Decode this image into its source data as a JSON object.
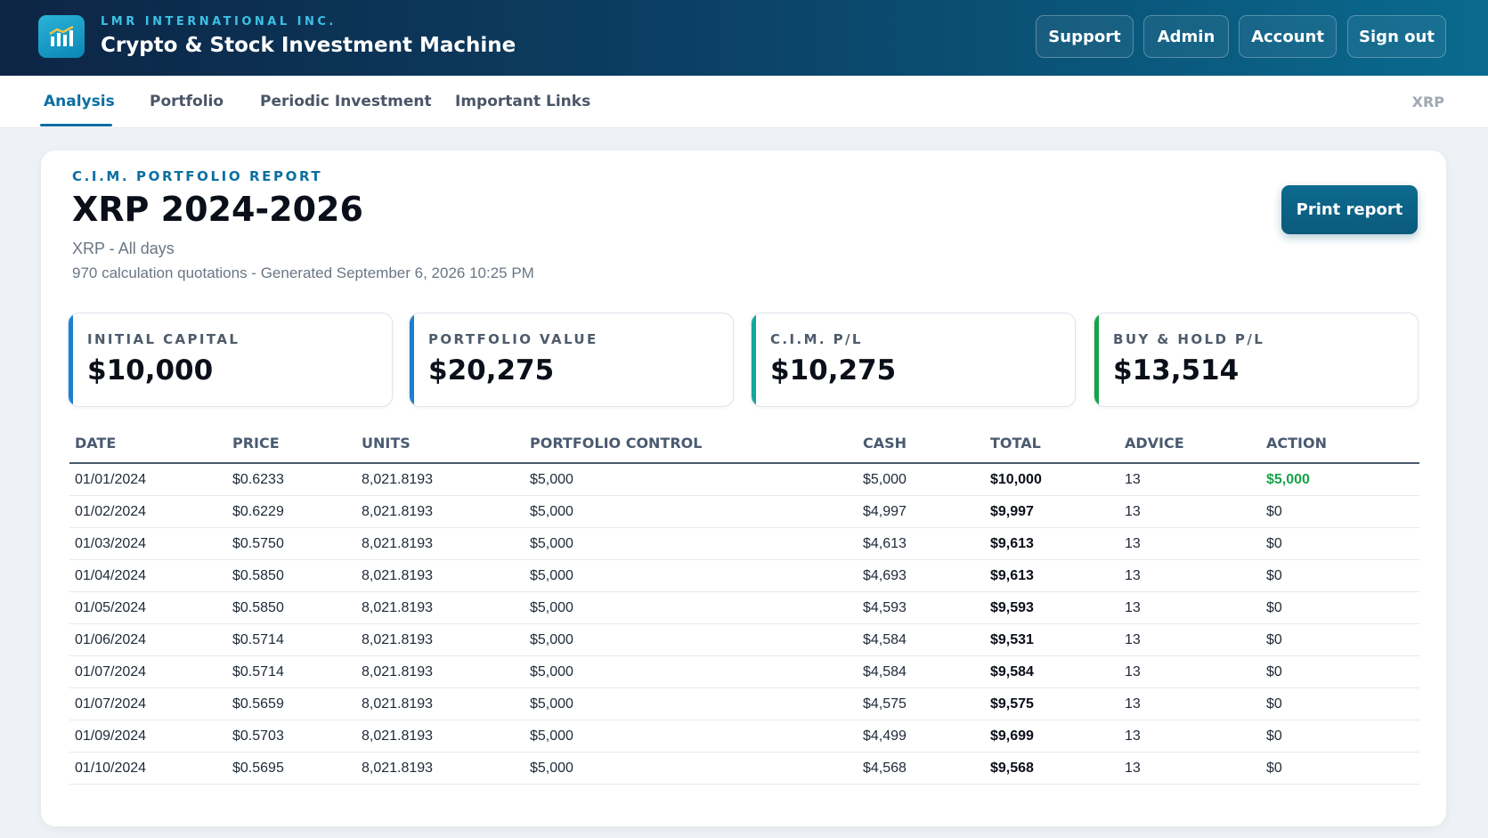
{
  "header": {
    "company": "LMR INTERNATIONAL INC.",
    "app_title": "Crypto & Stock Investment Machine",
    "logo_icon": "bar-chart-icon",
    "buttons": [
      "Support",
      "Admin",
      "Account",
      "Sign out"
    ]
  },
  "nav": {
    "tabs": [
      "Analysis",
      "Portfolio",
      "Periodic Investment",
      "Important Links"
    ],
    "active_tab": "Analysis",
    "right_label": "XRP"
  },
  "report": {
    "eyebrow": "C.I.M. PORTFOLIO REPORT",
    "title": "XRP 2024-2026",
    "subtitle": "XRP - All days",
    "meta": "970 calculation quotations - Generated September 6, 2026 10:25 PM",
    "print_label": "Print report"
  },
  "stats": [
    {
      "label": "INITIAL CAPITAL",
      "value": "$10,000",
      "accent": "#1d7fd1"
    },
    {
      "label": "PORTFOLIO VALUE",
      "value": "$20,275",
      "accent": "#1d7fd1"
    },
    {
      "label": "C.I.M. P/L",
      "value": "$10,275",
      "accent": "#14a89a"
    },
    {
      "label": "BUY & HOLD P/L",
      "value": "$13,514",
      "accent": "#16a34a"
    }
  ],
  "table": {
    "columns": [
      "DATE",
      "PRICE",
      "UNITS",
      "PORTFOLIO CONTROL",
      "CASH",
      "TOTAL",
      "ADVICE",
      "ACTION"
    ],
    "rows": [
      [
        "01/01/2024",
        "$0.6233",
        "8,021.8193",
        "$5,000",
        "$5,000",
        "$10,000",
        "13",
        "$5,000"
      ],
      [
        "01/02/2024",
        "$0.6229",
        "8,021.8193",
        "$5,000",
        "$4,997",
        "$9,997",
        "13",
        "$0"
      ],
      [
        "01/03/2024",
        "$0.5750",
        "8,021.8193",
        "$5,000",
        "$4,613",
        "$9,613",
        "13",
        "$0"
      ],
      [
        "01/04/2024",
        "$0.5850",
        "8,021.8193",
        "$5,000",
        "$4,693",
        "$9,613",
        "13",
        "$0"
      ],
      [
        "01/05/2024",
        "$0.5850",
        "8,021.8193",
        "$5,000",
        "$4,593",
        "$9,593",
        "13",
        "$0"
      ],
      [
        "01/06/2024",
        "$0.5714",
        "8,021.8193",
        "$5,000",
        "$4,584",
        "$9,531",
        "13",
        "$0"
      ],
      [
        "01/07/2024",
        "$0.5714",
        "8,021.8193",
        "$5,000",
        "$4,584",
        "$9,584",
        "13",
        "$0"
      ],
      [
        "01/07/2024",
        "$0.5659",
        "8,021.8193",
        "$5,000",
        "$4,575",
        "$9,575",
        "13",
        "$0"
      ],
      [
        "01/09/2024",
        "$0.5703",
        "8,021.8193",
        "$5,000",
        "$4,499",
        "$9,699",
        "13",
        "$0"
      ],
      [
        "01/10/2024",
        "$0.5695",
        "8,021.8193",
        "$5,000",
        "$4,568",
        "$9,568",
        "13",
        "$0"
      ]
    ],
    "action_positive_color": "#16a34a"
  }
}
